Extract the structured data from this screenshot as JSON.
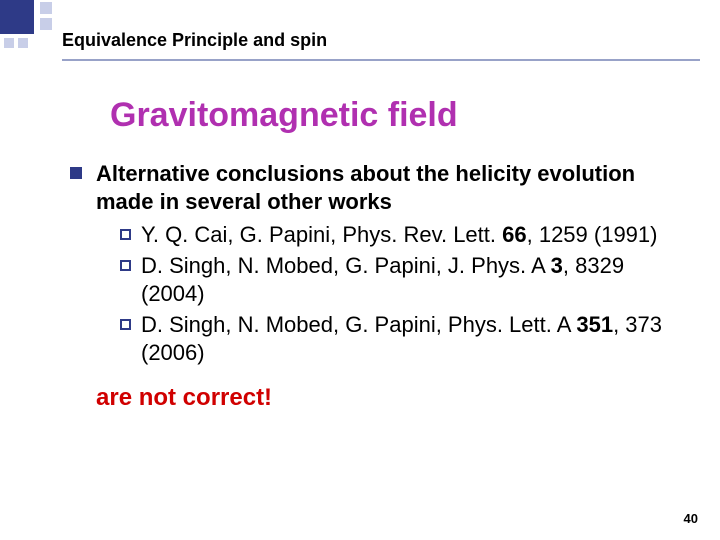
{
  "header": {
    "title": "Equivalence Principle and spin"
  },
  "section_title": "Gravitomagnetic field",
  "main_bullet": "Alternative conclusions about the helicity evolution made in several other works",
  "refs": [
    {
      "prefix": "Y. Q. Cai, G. Papini, Phys. Rev. Lett. ",
      "bold1": "66",
      "mid": ", 1259 (1991)"
    },
    {
      "prefix": "D. Singh, N. Mobed, G. Papini, J. Phys. A ",
      "bold1": "3",
      "mid": ", 8329 (2004)"
    },
    {
      "prefix": "D. Singh, N. Mobed, G. Papini, Phys. Lett. A ",
      "bold1": "351",
      "mid": ", 373 (2006)"
    }
  ],
  "closing": "are not correct!",
  "page_number": "40",
  "colors": {
    "accent": "#2e3a87",
    "accent_light": "#c8cee8",
    "section_title": "#b030b0",
    "closing": "#d00000",
    "rule": "#98a2c8"
  }
}
